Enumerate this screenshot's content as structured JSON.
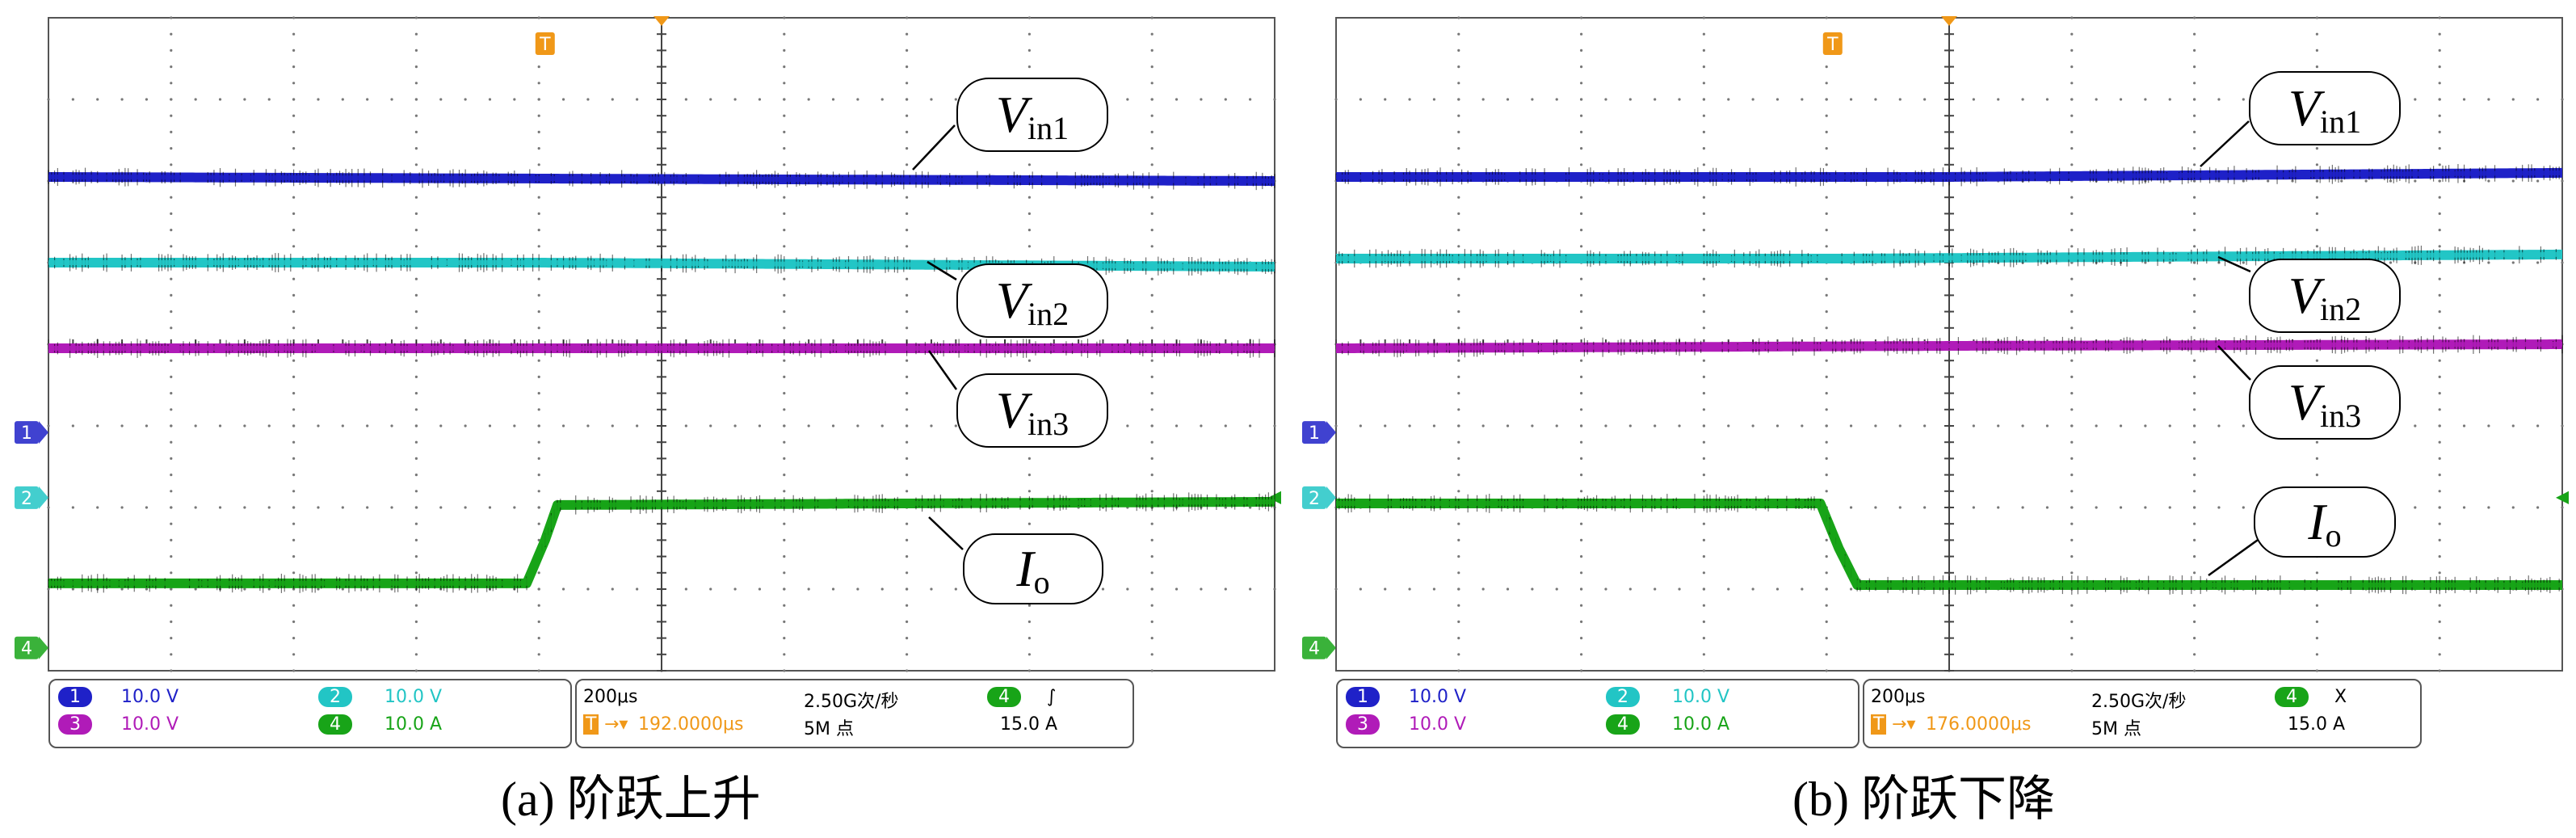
{
  "chart_data": [
    {
      "type": "line",
      "caption": "(a) 阶跃上升",
      "xlabel": "",
      "ylabel": "",
      "time_per_div": "200μs",
      "grid": true,
      "grid_divisions": {
        "x": 10,
        "y": 8
      },
      "series": [
        {
          "name": "V_in1",
          "label_main": "V",
          "label_sub": "in1",
          "color": "#1f21c8",
          "channel": "1",
          "x_div": [
            0,
            10
          ],
          "y_div": [
            6.05,
            6.0
          ]
        },
        {
          "name": "V_in2",
          "label_main": "V",
          "label_sub": "in2",
          "color": "#22c5c5",
          "channel": "2",
          "x_div": [
            0,
            4.0,
            10
          ],
          "y_div": [
            5.0,
            5.0,
            4.95
          ]
        },
        {
          "name": "V_in3",
          "label_main": "V",
          "label_sub": "in3",
          "color": "#b01bb8",
          "channel": "3",
          "x_div": [
            0,
            10
          ],
          "y_div": [
            3.95,
            3.95
          ]
        },
        {
          "name": "I_o",
          "label_main": "I",
          "label_sub": "o",
          "color": "#18a418",
          "channel": "4",
          "x_div": [
            0,
            3.9,
            4.05,
            4.15,
            10
          ],
          "y_div": [
            1.07,
            1.07,
            1.6,
            2.03,
            2.07
          ]
        }
      ],
      "ground_markers": [
        "1",
        "2",
        "4"
      ],
      "trigger_marker": "T",
      "status": {
        "ch1": {
          "num": "1",
          "val": "10.0 V"
        },
        "ch2": {
          "num": "2",
          "val": "10.0 V"
        },
        "ch3": {
          "num": "3",
          "val": "10.0 V"
        },
        "ch4": {
          "num": "4",
          "val": "10.0 A"
        },
        "timebase": "200μs",
        "sample_rate": "2.50G次/秒",
        "trigger_channel": "4",
        "trigger_slope": "∫",
        "trigger_pos": "192.0000μs",
        "record_length": "5M 点",
        "trigger_level": "15.0 A"
      }
    },
    {
      "type": "line",
      "caption": "(b) 阶跃下降",
      "xlabel": "",
      "ylabel": "",
      "time_per_div": "200μs",
      "grid": true,
      "grid_divisions": {
        "x": 10,
        "y": 8
      },
      "series": [
        {
          "name": "V_in1",
          "label_main": "V",
          "label_sub": "in1",
          "color": "#1f21c8",
          "channel": "1",
          "x_div": [
            0,
            5.0,
            10
          ],
          "y_div": [
            6.05,
            6.05,
            6.1
          ]
        },
        {
          "name": "V_in2",
          "label_main": "V",
          "label_sub": "in2",
          "color": "#22c5c5",
          "channel": "2",
          "x_div": [
            0,
            4.2,
            10
          ],
          "y_div": [
            5.05,
            5.05,
            5.1
          ]
        },
        {
          "name": "V_in3",
          "label_main": "V",
          "label_sub": "in3",
          "color": "#b01bb8",
          "channel": "3",
          "x_div": [
            0,
            5.0,
            10
          ],
          "y_div": [
            3.95,
            3.98,
            4.0
          ]
        },
        {
          "name": "I_o",
          "label_main": "I",
          "label_sub": "o",
          "color": "#18a418",
          "channel": "4",
          "x_div": [
            0,
            3.95,
            4.1,
            4.25,
            10
          ],
          "y_div": [
            2.05,
            2.05,
            1.5,
            1.05,
            1.05
          ]
        }
      ],
      "ground_markers": [
        "1",
        "2",
        "4"
      ],
      "trigger_marker": "T",
      "status": {
        "ch1": {
          "num": "1",
          "val": "10.0 V"
        },
        "ch2": {
          "num": "2",
          "val": "10.0 V"
        },
        "ch3": {
          "num": "3",
          "val": "10.0 V"
        },
        "ch4": {
          "num": "4",
          "val": "10.0 A"
        },
        "timebase": "200μs",
        "sample_rate": "2.50G次/秒",
        "trigger_channel": "4",
        "trigger_slope": "X",
        "trigger_pos": "176.0000μs",
        "record_length": "5M 点",
        "trigger_level": "15.0 A"
      }
    }
  ]
}
